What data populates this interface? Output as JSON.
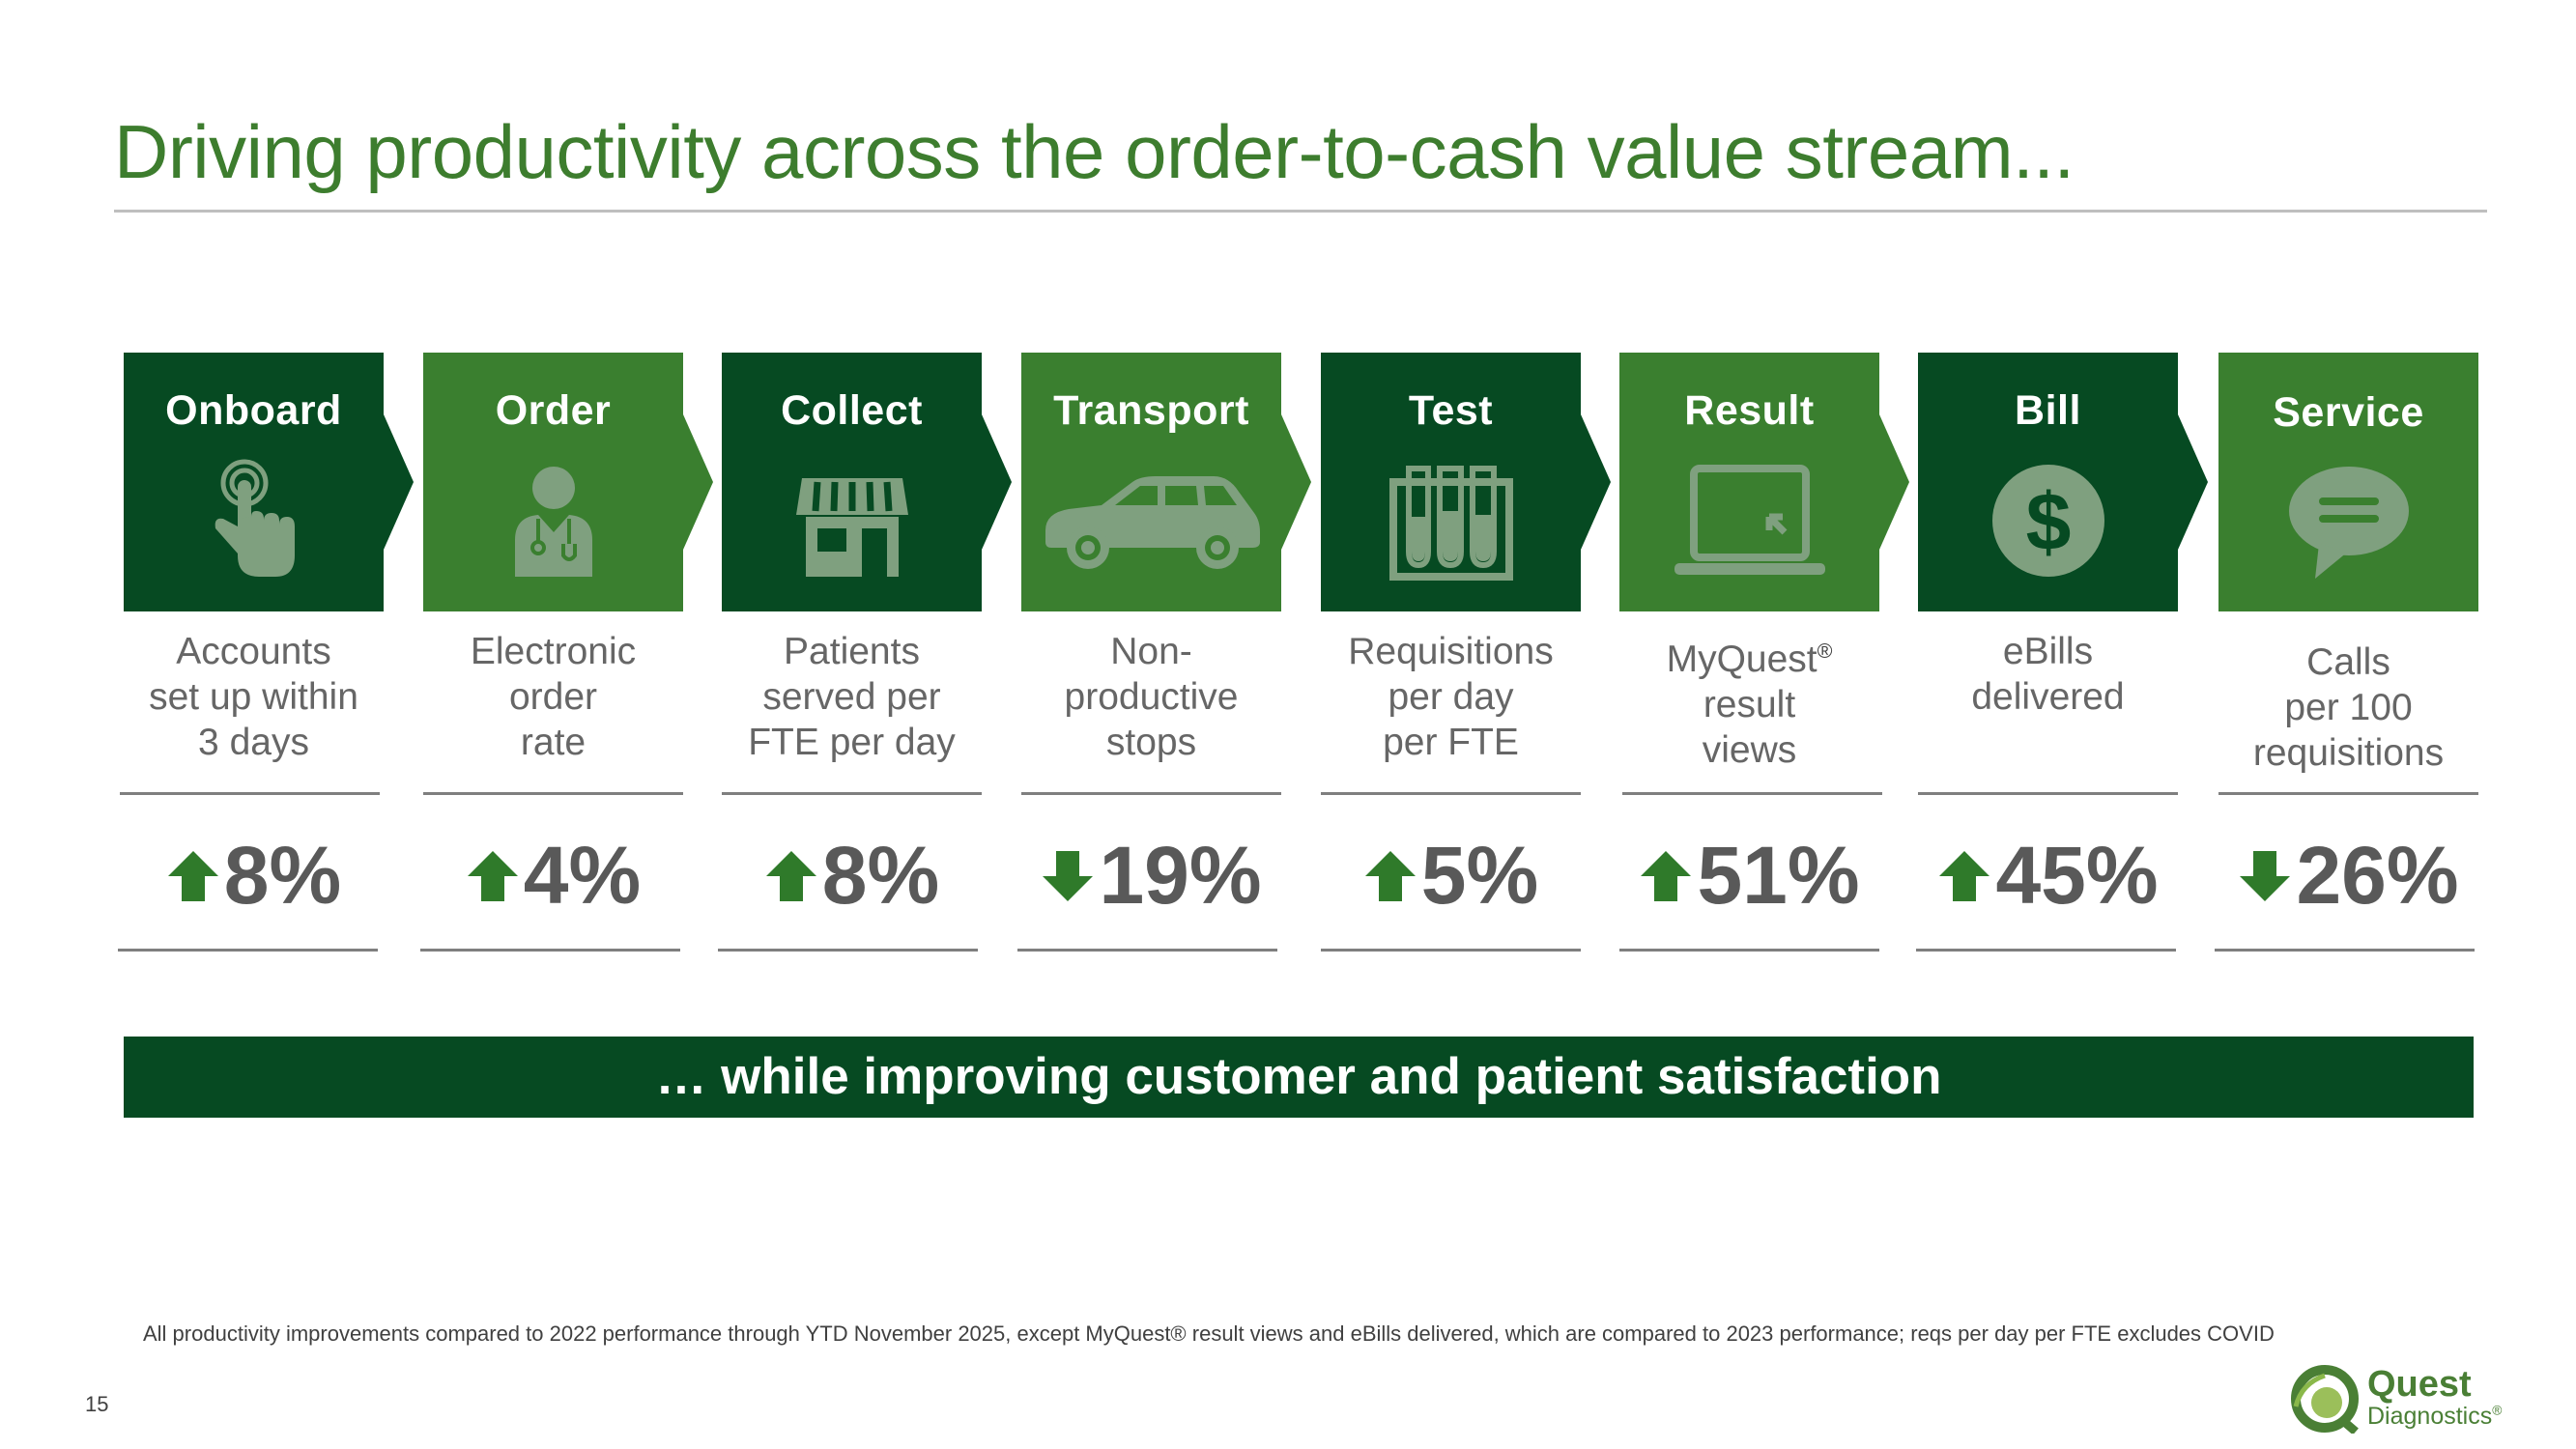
{
  "title": "Driving productivity across the order-to-cash value stream...",
  "stages": [
    {
      "label": "Onboard",
      "icon": "touch-hand-icon",
      "desc": [
        "Accounts",
        "set up within",
        "3 days"
      ],
      "direction": "up",
      "value": "8%"
    },
    {
      "label": "Order",
      "icon": "doctor-icon",
      "desc": [
        "Electronic",
        "order",
        "rate"
      ],
      "direction": "up",
      "value": "4%"
    },
    {
      "label": "Collect",
      "icon": "storefront-icon",
      "desc": [
        "Patients",
        "served per",
        "FTE per day"
      ],
      "direction": "up",
      "value": "8%"
    },
    {
      "label": "Transport",
      "icon": "car-icon",
      "desc": [
        "Non-",
        "productive",
        "stops"
      ],
      "direction": "down",
      "value": "19%"
    },
    {
      "label": "Test",
      "icon": "test-tubes-icon",
      "desc": [
        "Requisitions",
        "per day",
        "per FTE"
      ],
      "direction": "up",
      "value": "5%"
    },
    {
      "label": "Result",
      "icon": "laptop-icon",
      "desc": [
        "MyQuest",
        "result",
        "views"
      ],
      "desc_sup": "®",
      "direction": "up",
      "value": "51%"
    },
    {
      "label": "Bill",
      "icon": "dollar-icon",
      "desc": [
        "eBills",
        "delivered"
      ],
      "direction": "up",
      "value": "45%"
    },
    {
      "label": "Service",
      "icon": "chat-bubble-icon",
      "desc": [
        "Calls",
        "per 100",
        "requisitions"
      ],
      "direction": "down",
      "value": "26%"
    }
  ],
  "banner": "… while improving customer and patient satisfaction",
  "footnote": "All productivity improvements compared to 2022 performance through YTD November 2025, except MyQuest® result views and eBills delivered, which are compared to 2023 performance; reqs per day per FTE excludes COVID",
  "page_number": "15",
  "logo": {
    "line1": "Quest",
    "line2": "Diagnostics",
    "mark": "®"
  },
  "colors": {
    "dark_green": "#064a22",
    "light_green": "#3a7f2f",
    "icon_tint": "#7fa07f",
    "arrow_green": "#2f7a2a"
  }
}
